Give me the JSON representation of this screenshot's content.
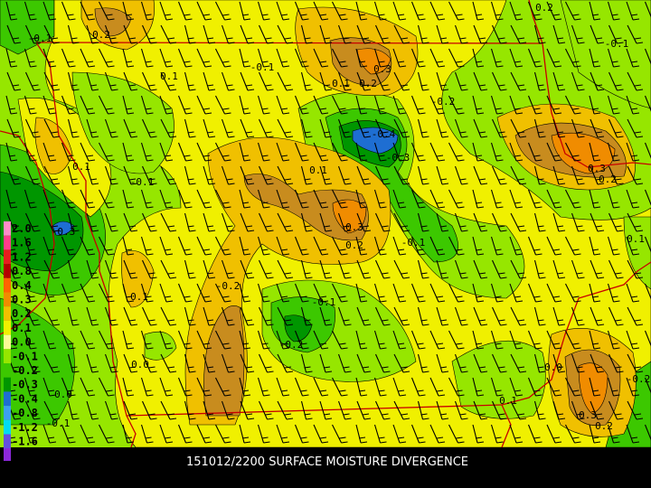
{
  "caption": "151012/2200 SURFACE MOISTURE DIVERGENCE",
  "legend": [
    {
      "label": "2.0",
      "color": "#ff8cc8"
    },
    {
      "label": "1.6",
      "color": "#ff3c8c"
    },
    {
      "label": "1.2",
      "color": "#e61e1e"
    },
    {
      "label": "0.8",
      "color": "#b40000"
    },
    {
      "label": "0.4",
      "color": "#ff6400"
    },
    {
      "label": "0.3",
      "color": "#f08c00"
    },
    {
      "label": "0.2",
      "color": "#f0c000"
    },
    {
      "label": "0.1",
      "color": "#f0f000"
    },
    {
      "label": "0.0",
      "color": "#fafa96"
    },
    {
      "label": "-0.1",
      "color": "#96e600"
    },
    {
      "label": "-0.2",
      "color": "#3cc800"
    },
    {
      "label": "-0.3",
      "color": "#009600"
    },
    {
      "label": "-0.4",
      "color": "#1e6ed2"
    },
    {
      "label": "-0.8",
      "color": "#3ca0f0"
    },
    {
      "label": "-1.2",
      "color": "#00dcf0"
    },
    {
      "label": "-1.6",
      "color": "#6450dc"
    }
  ],
  "contour_labels": [
    "-0.1",
    "0.2",
    "0.3",
    "0.1",
    "0.2",
    "-0.1",
    "0.1",
    "-0.4",
    "-0.3",
    "-0.2",
    "0.1",
    "-0.1",
    "-0.3",
    "0.3",
    "0.2",
    "0.1",
    "-0.1",
    "0.1",
    "-0.2",
    "-0.1",
    "-0.2",
    "0.0",
    "0.0",
    "-0.1",
    "0.1",
    "0.3",
    "0.2",
    "0.1",
    "-0.1",
    "0.2",
    "0.2",
    "0.3",
    "-0.2",
    "0.0"
  ]
}
